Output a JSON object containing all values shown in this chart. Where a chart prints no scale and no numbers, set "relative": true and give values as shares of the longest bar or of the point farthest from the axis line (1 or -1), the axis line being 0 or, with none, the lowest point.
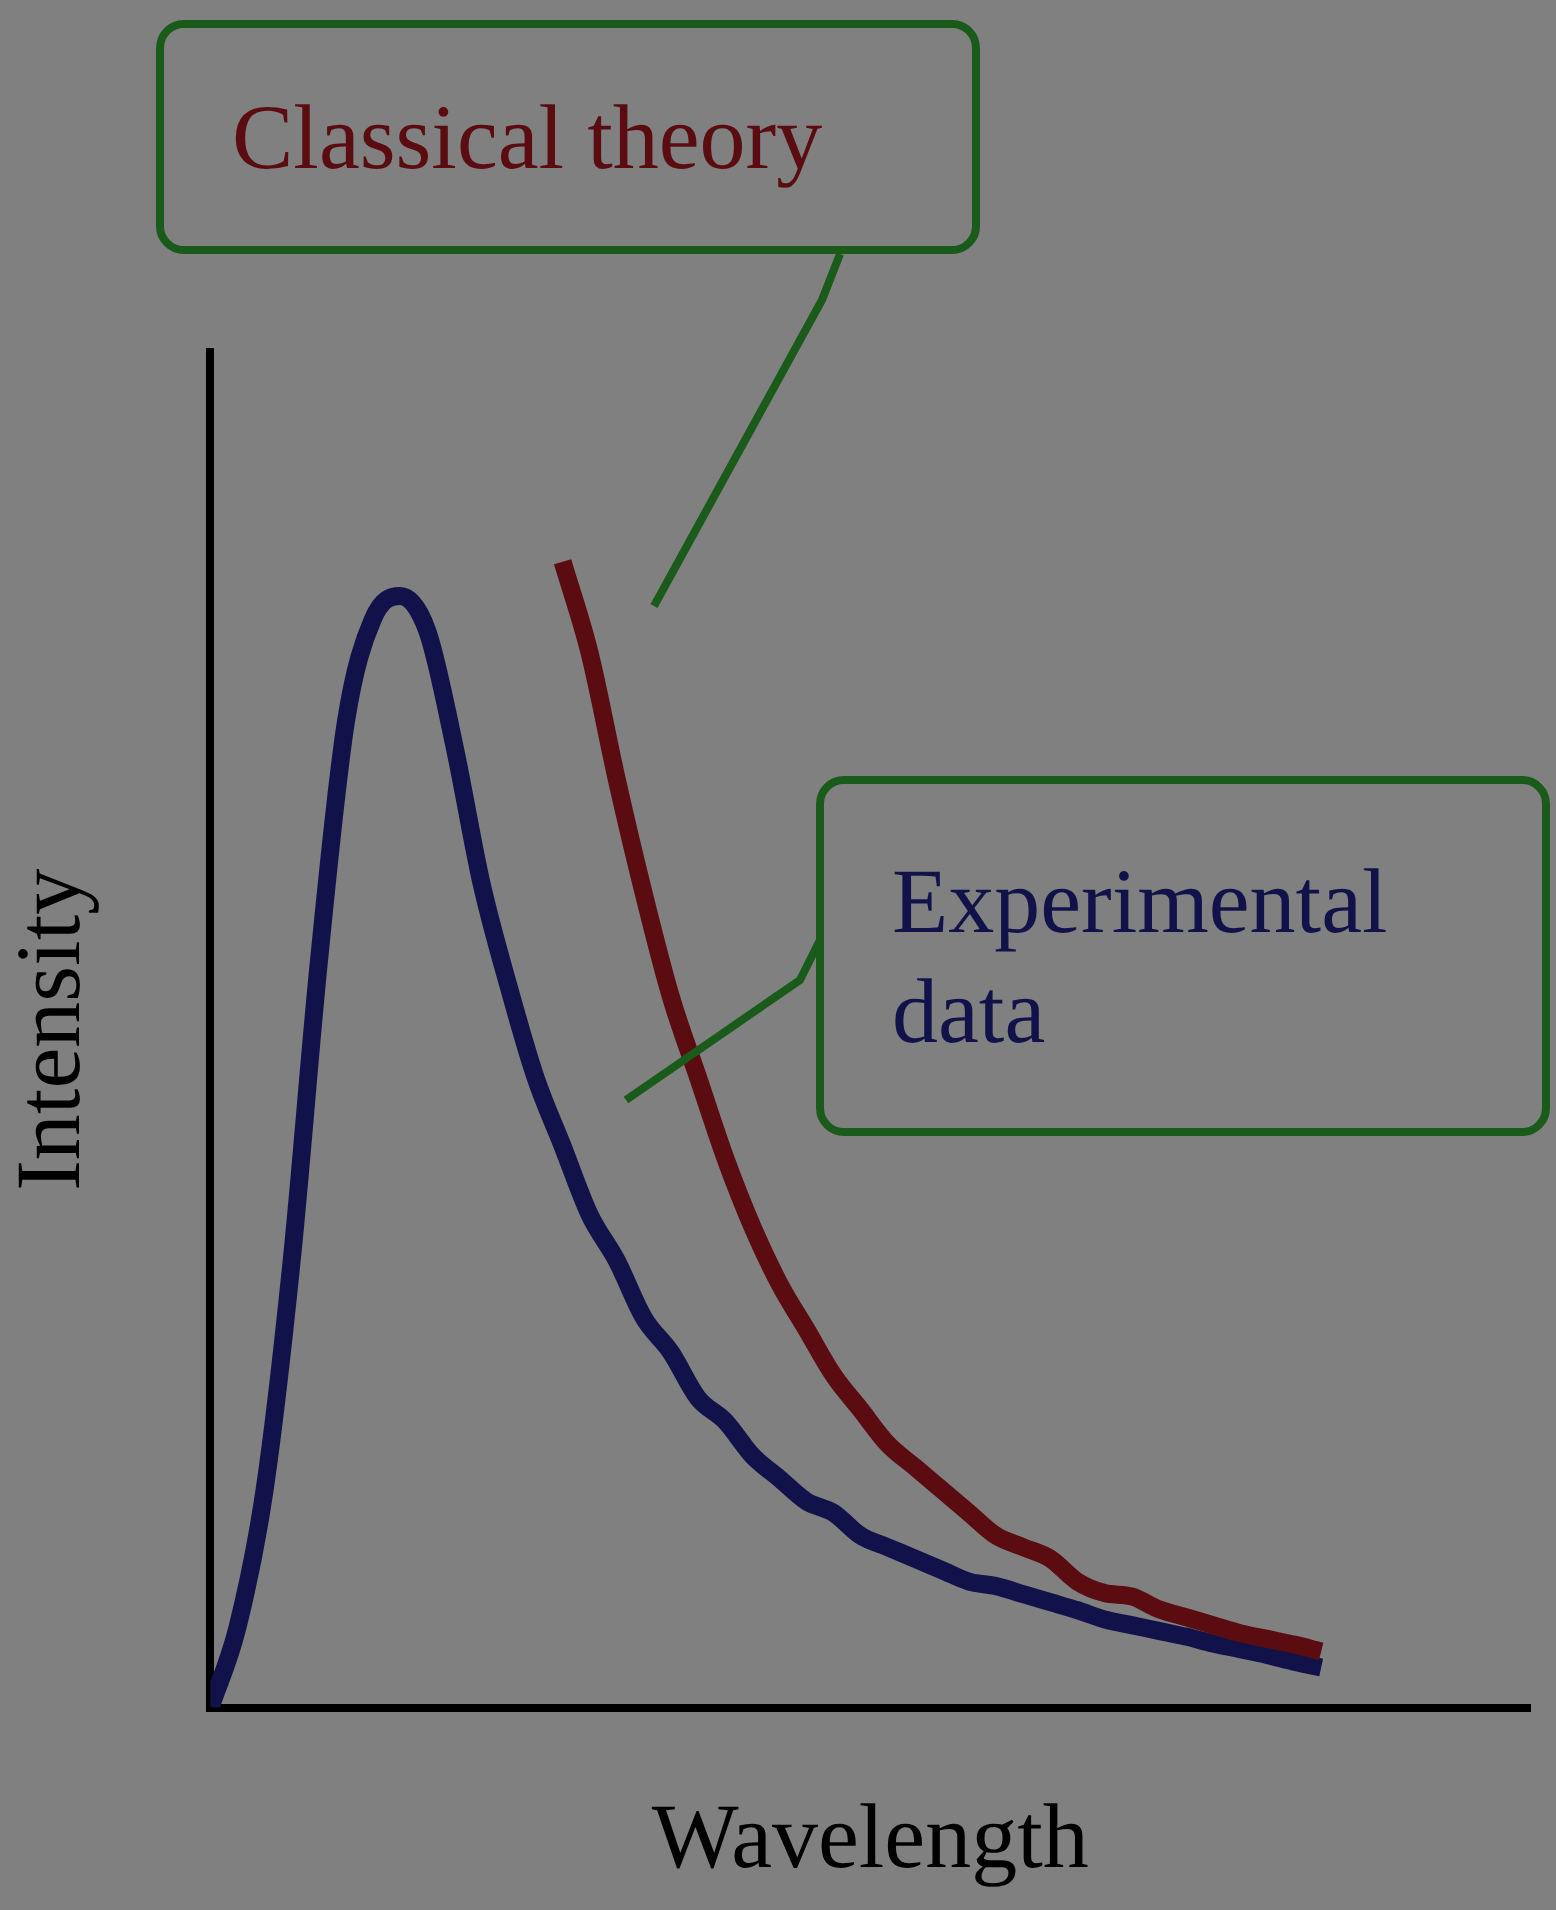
{
  "chart_data": {
    "type": "line",
    "relative": true,
    "xlabel": "Wavelength",
    "ylabel": "Intensity",
    "legend": false,
    "marker": "none",
    "line_style": "solid",
    "grid": false,
    "tick_labels": false,
    "categories": [
      null,
      null,
      null,
      null,
      null,
      null,
      null,
      null,
      null,
      null,
      null,
      null,
      null,
      null,
      null,
      null,
      null,
      null,
      null,
      null,
      null,
      null,
      null,
      null,
      null,
      null,
      null,
      null,
      null,
      null,
      null,
      null,
      null,
      null,
      null,
      null,
      null,
      null,
      null,
      null,
      null,
      null
    ],
    "series": [
      {
        "name": "Classical theory",
        "color": "#5a0c10",
        "values": [
          null,
          null,
          null,
          null,
          null,
          null,
          null,
          null,
          null,
          null,
          null,
          null,
          null,
          1.0,
          0.92,
          0.81,
          0.71,
          0.62,
          0.55,
          0.48,
          0.42,
          0.37,
          0.33,
          0.29,
          0.26,
          0.23,
          0.21,
          0.19,
          0.17,
          0.15,
          0.14,
          0.13,
          0.11,
          0.1,
          0.097,
          0.086,
          0.079,
          0.072,
          0.065,
          0.06,
          0.055,
          0.049
        ]
      },
      {
        "name": "Experimental data",
        "color": "#12124a",
        "values": [
          0,
          0.07,
          0.19,
          0.39,
          0.65,
          0.86,
          0.95,
          0.97,
          0.94,
          0.84,
          0.72,
          0.63,
          0.55,
          0.49,
          0.43,
          0.39,
          0.34,
          0.31,
          0.27,
          0.25,
          0.22,
          0.2,
          0.18,
          0.17,
          0.15,
          0.14,
          0.13,
          0.12,
          0.11,
          0.106,
          0.099,
          0.092,
          0.085,
          0.077,
          0.072,
          0.067,
          0.062,
          0.056,
          0.051,
          0.046,
          0.04,
          0.035
        ]
      }
    ]
  }
}
